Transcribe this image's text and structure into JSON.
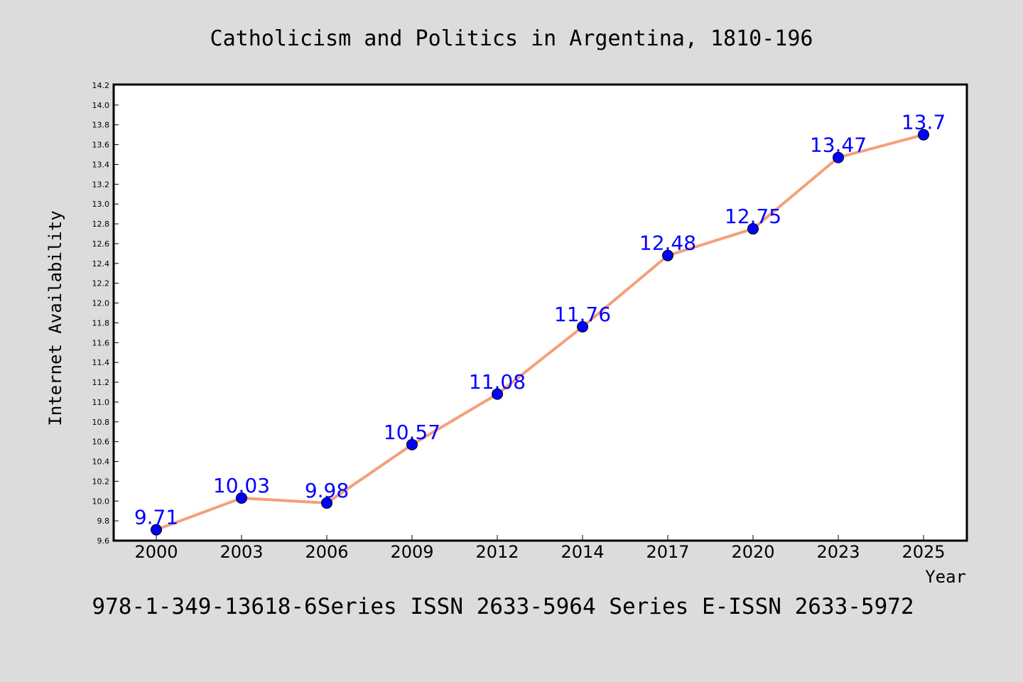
{
  "chart_data": {
    "type": "line",
    "title": "Catholicism and Politics in Argentina, 1810-196",
    "xlabel": "Year",
    "ylabel": "Internet Availability",
    "categories": [
      "2000",
      "2003",
      "2006",
      "2009",
      "2012",
      "2014",
      "2017",
      "2020",
      "2023",
      "2025"
    ],
    "series": [
      {
        "values": [
          9.71,
          10.03,
          9.98,
          10.57,
          11.08,
          11.76,
          12.48,
          12.75,
          13.47,
          13.7
        ],
        "labels": [
          "9.71",
          "10.03",
          "9.98",
          "10.57",
          "11.08",
          "11.76",
          "12.48",
          "12.75",
          "13.47",
          "13.7"
        ],
        "line_color": "#f4a07a",
        "marker_color": "#0000ff"
      }
    ],
    "ylim": [
      9.6,
      14.2
    ],
    "yticks": [
      "9.6",
      "9.8",
      "10.0",
      "10.2",
      "10.4",
      "10.6",
      "10.8",
      "11.0",
      "11.2",
      "11.4",
      "11.6",
      "11.8",
      "12.0",
      "12.2",
      "12.4",
      "12.6",
      "12.8",
      "13.0",
      "13.2",
      "13.4",
      "13.6",
      "13.8",
      "14.0",
      "14.2"
    ],
    "grid": false,
    "legend": "none"
  },
  "footer": {
    "text": "978-1-349-13618-6Series ISSN 2633-5964 Series E-ISSN 2633-5972"
  },
  "colors": {
    "background": "#dcdcdc",
    "plot_background": "#ffffff",
    "line": "#f4a07a",
    "marker": "#0000ff",
    "data_label": "#0000ff"
  }
}
